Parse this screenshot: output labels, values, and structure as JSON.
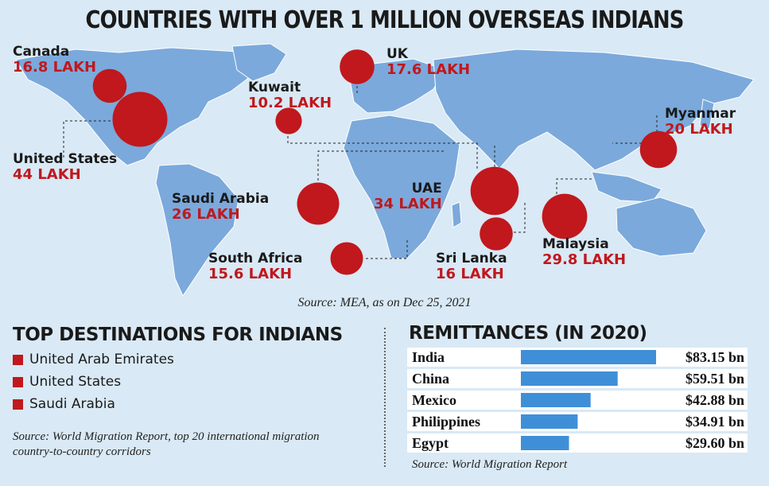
{
  "title": "COUNTRIES WITH OVER 1 MILLION OVERSEAS INDIANS",
  "map": {
    "source": "Source: MEA, as on Dec 25, 2021",
    "countries": [
      {
        "name": "Canada",
        "value": "16.8 LAKH",
        "lakh": 16.8
      },
      {
        "name": "United States",
        "value": "44 LAKH",
        "lakh": 44
      },
      {
        "name": "UK",
        "value": "17.6 LAKH",
        "lakh": 17.6
      },
      {
        "name": "Kuwait",
        "value": "10.2 LAKH",
        "lakh": 10.2
      },
      {
        "name": "Myanmar",
        "value": "20 LAKH",
        "lakh": 20
      },
      {
        "name": "Saudi Arabia",
        "value": "26 LAKH",
        "lakh": 26
      },
      {
        "name": "UAE",
        "value": "34 LAKH",
        "lakh": 34
      },
      {
        "name": "Malaysia",
        "value": "29.8 LAKH",
        "lakh": 29.8
      },
      {
        "name": "Sri Lanka",
        "value": "16 LAKH",
        "lakh": 16
      },
      {
        "name": "South Africa",
        "value": "15.6 LAKH",
        "lakh": 15.6
      }
    ]
  },
  "destinations": {
    "heading": "TOP DESTINATIONS FOR INDIANS",
    "items": [
      "United Arab Emirates",
      "United States",
      "Saudi Arabia"
    ],
    "source": "Source: World Migration Report, top 20 international migration country-to-country corridors"
  },
  "chart_data": {
    "type": "bar",
    "title": "REMITTANCES (IN 2020)",
    "categories": [
      "India",
      "China",
      "Mexico",
      "Philippines",
      "Egypt"
    ],
    "values": [
      83.15,
      59.51,
      42.88,
      34.91,
      29.6
    ],
    "value_labels": [
      "$83.15 bn",
      "$59.51 bn",
      "$42.88 bn",
      "$34.91 bn",
      "$29.60 bn"
    ],
    "unit": "bn USD",
    "source": "Source: World Migration Report"
  },
  "colors": {
    "land": "#7ba9dc",
    "bubble": "#c0181d",
    "bar": "#3f8fd8",
    "bg": "#d9e9f5"
  }
}
